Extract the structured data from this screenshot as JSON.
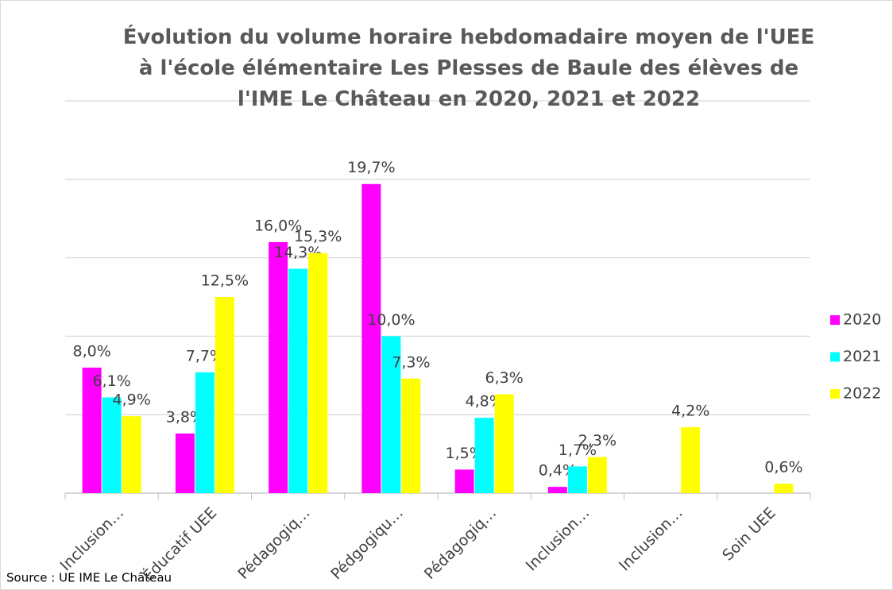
{
  "chart_data": {
    "type": "bar",
    "title": "Évolution du volume horaire hebdomadaire moyen de l'UEE à l'école élémentaire Les Plesses de Baule des élèves de l'IME Le Château en 2020, 2021 et 2022",
    "categories": [
      "Inclusion…",
      "Éducatif UEE",
      "Pédagogiq…",
      "Pédgogiqu…",
      "Pédagogiq…",
      "Inclusion…",
      "Inclusion…",
      "Soin UEE"
    ],
    "series": [
      {
        "name": "2020",
        "color": "#ff00ff",
        "values": [
          8.0,
          3.8,
          16.0,
          19.7,
          1.5,
          0.4,
          null,
          null
        ],
        "value_labels": [
          "8,0%",
          "3,8%",
          "16,0%",
          "19,7%",
          "1,5%",
          "0,4%",
          null,
          null
        ]
      },
      {
        "name": "2021",
        "color": "#00ffff",
        "values": [
          6.1,
          7.7,
          14.3,
          10.0,
          4.8,
          1.7,
          null,
          null
        ],
        "value_labels": [
          "6,1%",
          "7,7%",
          "14,3%",
          "10,0%",
          "4,8%",
          "1,7%",
          null,
          null
        ]
      },
      {
        "name": "2022",
        "color": "#ffff00",
        "values": [
          4.9,
          12.5,
          15.3,
          7.3,
          6.3,
          2.3,
          4.2,
          0.6
        ],
        "value_labels": [
          "4,9%",
          "12,5%",
          "15,3%",
          "7,3%",
          "6,3%",
          "2,3%",
          "4,2%",
          "0,6%"
        ]
      }
    ],
    "ylim": [
      0,
      25
    ],
    "yticks": [
      0,
      5,
      10,
      15,
      20,
      25
    ],
    "grid": true,
    "legend": "right",
    "source": "Source : UE IME Le Château"
  }
}
